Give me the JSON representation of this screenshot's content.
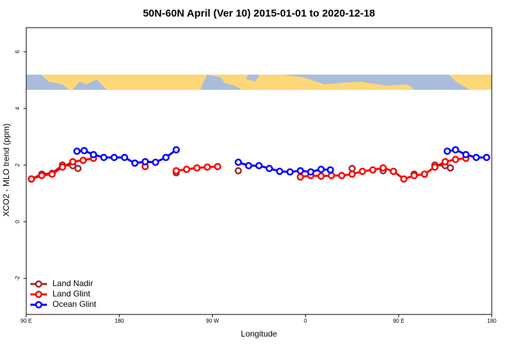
{
  "chart_data": {
    "type": "line",
    "title": "50N-60N April (Ver 10)   2015-01-01 to 2020-12-18",
    "x_label": "Longitude",
    "y_label": "XCO2 - MLO trend (ppm)",
    "xlim": [
      90,
      540
    ],
    "ylim": [
      -3.27,
      6.85
    ],
    "xticks": [
      {
        "value": 90,
        "label": "90 E"
      },
      {
        "value": 180,
        "label": "180"
      },
      {
        "value": 270,
        "label": "90 W"
      },
      {
        "value": 360,
        "label": "0"
      },
      {
        "value": 450,
        "label": "90 E"
      },
      {
        "value": 540,
        "label": "180"
      }
    ],
    "yticks": [
      -2,
      0,
      2,
      4,
      6
    ],
    "legend": "bottom-left",
    "series": [
      {
        "name": "Land Nadir",
        "color": "#a52a2a",
        "x": [
          95,
          105,
          115,
          125,
          135,
          140,
          null,
          235,
          null,
          295,
          null,
          405,
          null,
          435,
          null,
          465,
          null,
          485,
          495,
          500
        ],
        "values": [
          1.51,
          1.68,
          1.71,
          2.0,
          1.98,
          1.88,
          null,
          1.73,
          null,
          1.8,
          null,
          1.88,
          null,
          1.8,
          null,
          1.68,
          null,
          2.0,
          1.98,
          1.9
        ]
      },
      {
        "name": "Land Glint",
        "color": "#ff0000",
        "x": [
          95,
          105,
          115,
          125,
          135,
          145,
          155,
          null,
          205,
          null,
          235,
          245,
          255,
          265,
          275,
          null,
          355,
          365,
          375,
          385,
          395,
          405,
          415,
          425,
          435,
          445,
          455,
          465,
          475,
          485,
          495,
          505,
          515
        ],
        "values": [
          1.51,
          1.63,
          1.68,
          1.93,
          2.12,
          2.17,
          2.24,
          null,
          1.95,
          null,
          1.8,
          1.85,
          1.9,
          1.93,
          1.95,
          null,
          1.58,
          1.63,
          1.61,
          1.63,
          1.63,
          1.68,
          1.78,
          1.83,
          1.9,
          1.78,
          1.51,
          1.63,
          1.68,
          1.93,
          2.12,
          2.2,
          2.24
        ]
      },
      {
        "name": "Ocean Glint",
        "color": "#0000ff",
        "x": [
          139,
          146,
          155,
          165,
          175,
          185,
          195,
          205,
          215,
          225,
          235,
          null,
          295,
          305,
          315,
          325,
          335,
          345,
          355,
          365,
          375,
          384,
          null,
          497,
          505,
          515,
          525,
          535
        ],
        "values": [
          2.49,
          2.51,
          2.37,
          2.27,
          2.27,
          2.27,
          2.07,
          2.12,
          2.1,
          2.27,
          2.54,
          null,
          2.1,
          1.98,
          1.98,
          1.88,
          1.78,
          1.76,
          1.8,
          1.76,
          1.85,
          1.83,
          null,
          2.49,
          2.54,
          2.37,
          2.27,
          2.27
        ]
      }
    ]
  }
}
